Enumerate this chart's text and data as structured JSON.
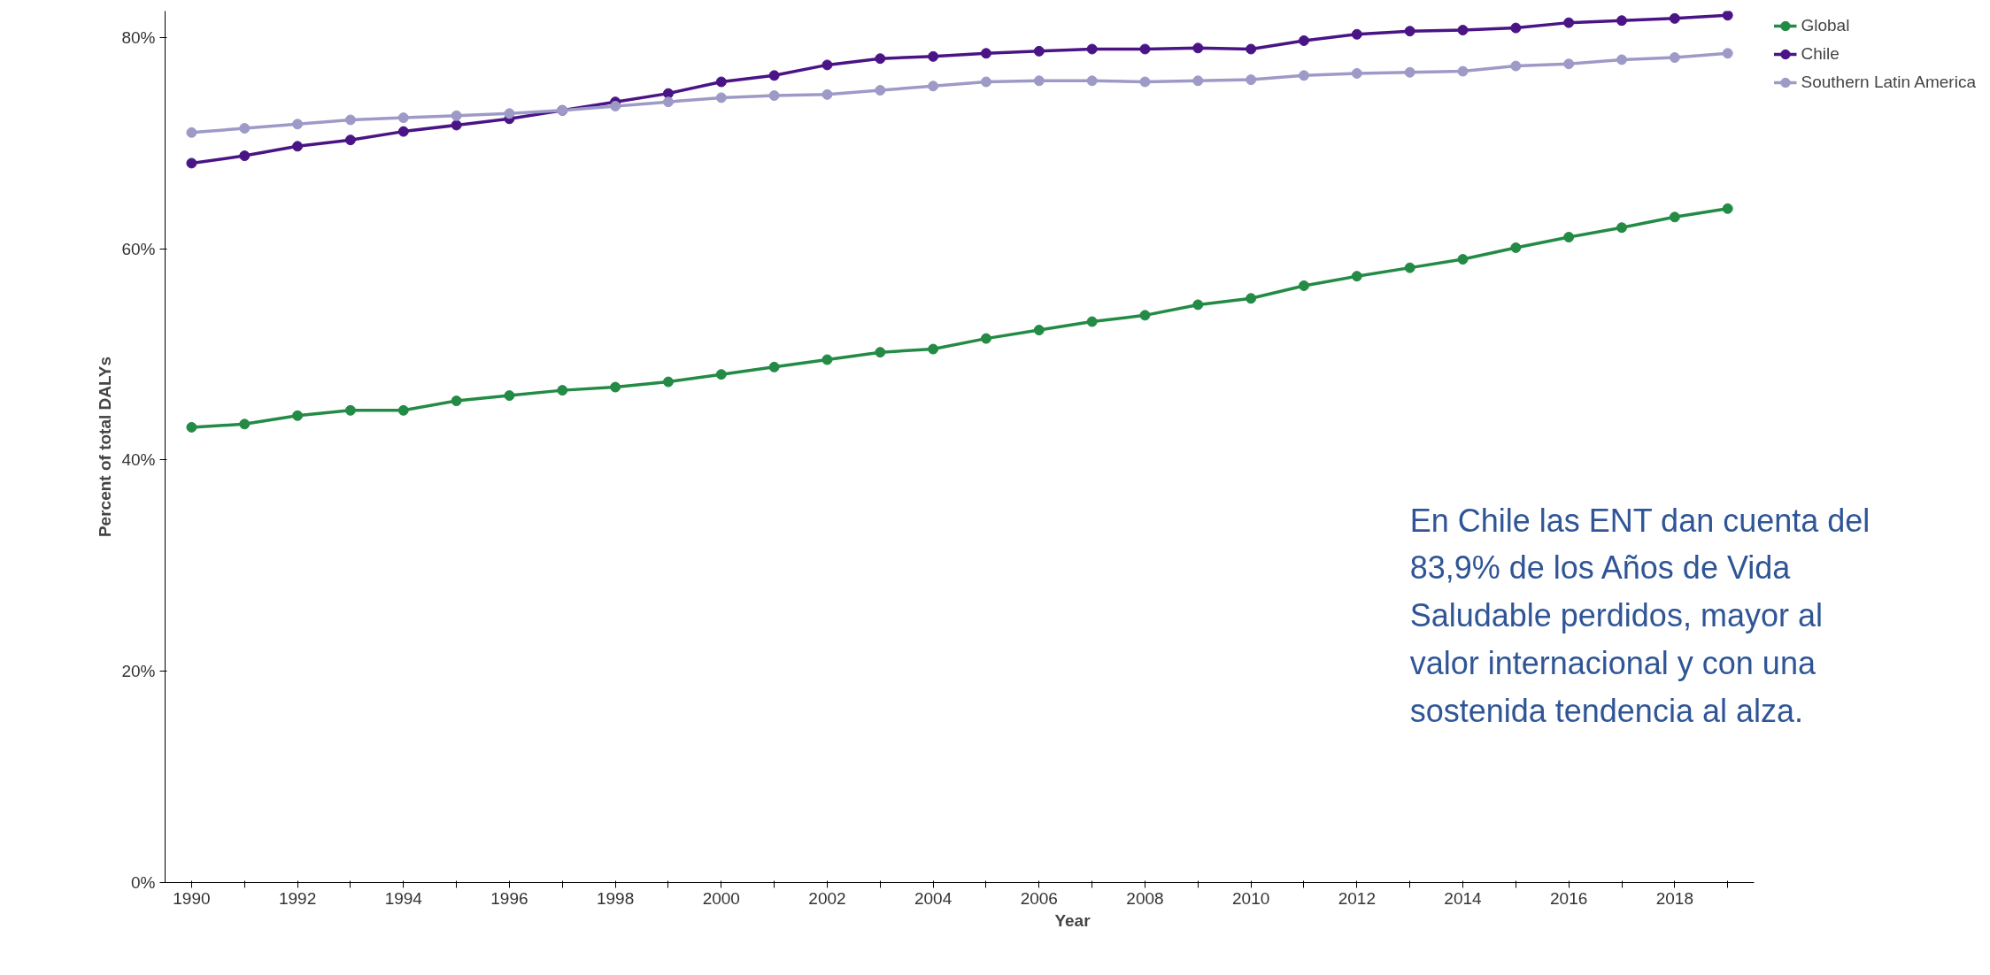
{
  "chart_data": {
    "type": "line",
    "xlabel": "Year",
    "ylabel": "Percent of total DALYs",
    "x": [
      1990,
      1991,
      1992,
      1993,
      1994,
      1995,
      1996,
      1997,
      1998,
      1999,
      2000,
      2001,
      2002,
      2003,
      2004,
      2005,
      2006,
      2007,
      2008,
      2009,
      2010,
      2011,
      2012,
      2013,
      2014,
      2015,
      2016,
      2017,
      2018,
      2019
    ],
    "series": [
      {
        "name": "Global",
        "color": "#238b45",
        "values": [
          43.1,
          43.4,
          44.2,
          44.7,
          44.7,
          45.6,
          46.1,
          46.6,
          46.9,
          47.4,
          48.1,
          48.8,
          49.5,
          50.2,
          50.5,
          51.5,
          52.3,
          53.1,
          53.7,
          54.7,
          55.3,
          56.5,
          57.4,
          58.2,
          59.0,
          60.1,
          61.1,
          62.0,
          63.0,
          63.8
        ]
      },
      {
        "name": "Chile",
        "color": "#4a1486",
        "values": [
          68.1,
          68.8,
          69.7,
          70.3,
          71.1,
          71.7,
          72.3,
          73.1,
          73.9,
          74.7,
          75.8,
          76.4,
          77.4,
          78.0,
          78.2,
          78.5,
          78.7,
          78.9,
          78.9,
          79.0,
          78.9,
          79.7,
          80.3,
          80.6,
          80.7,
          80.9,
          81.4,
          81.6,
          81.8,
          82.1
        ]
      },
      {
        "name": "Southern Latin America",
        "color": "#9e9ac8",
        "values": [
          71.0,
          71.4,
          71.8,
          72.2,
          72.4,
          72.6,
          72.8,
          73.1,
          73.5,
          73.9,
          74.3,
          74.5,
          74.6,
          75.0,
          75.4,
          75.8,
          75.9,
          75.9,
          75.8,
          75.9,
          76.0,
          76.4,
          76.6,
          76.7,
          76.8,
          77.3,
          77.5,
          77.9,
          78.1,
          78.5
        ]
      }
    ],
    "xlim": [
      1989.5,
      2019.5
    ],
    "xticks": [
      1990,
      {
        "value": 1991,
        "label": null
      },
      1992,
      {
        "value": 1993,
        "label": null
      },
      1994,
      {
        "value": 1995,
        "label": null
      },
      1996,
      {
        "value": 1997,
        "label": null
      },
      1998,
      {
        "value": 1999,
        "label": null
      },
      2000,
      {
        "value": 2001,
        "label": null
      },
      2002,
      {
        "value": 2003,
        "label": null
      },
      2004,
      {
        "value": 2005,
        "label": null
      },
      2006,
      {
        "value": 2007,
        "label": null
      },
      2008,
      {
        "value": 2009,
        "label": null
      },
      2010,
      {
        "value": 2011,
        "label": null
      },
      2012,
      {
        "value": 2013,
        "label": null
      },
      2014,
      {
        "value": 2015,
        "label": null
      },
      2016,
      {
        "value": 2017,
        "label": null
      },
      2018,
      {
        "value": 2019,
        "label": null
      }
    ],
    "ylim": [
      0,
      82.5
    ],
    "yticks": [
      {
        "value": 0,
        "label": "0%"
      },
      {
        "value": 20,
        "label": "20%"
      },
      {
        "value": 40,
        "label": "40%"
      },
      {
        "value": 60,
        "label": "60%"
      },
      {
        "value": 80,
        "label": "80%"
      }
    ],
    "grid": false,
    "legend": "top right",
    "marker": "circle",
    "line_style": "solid",
    "annotations": [
      "En Chile las ENT dan cuenta del 83,9% de los Años de Vida Saludable perdidos, mayor al valor internacional y con una sostenida tendencia al alza."
    ]
  }
}
